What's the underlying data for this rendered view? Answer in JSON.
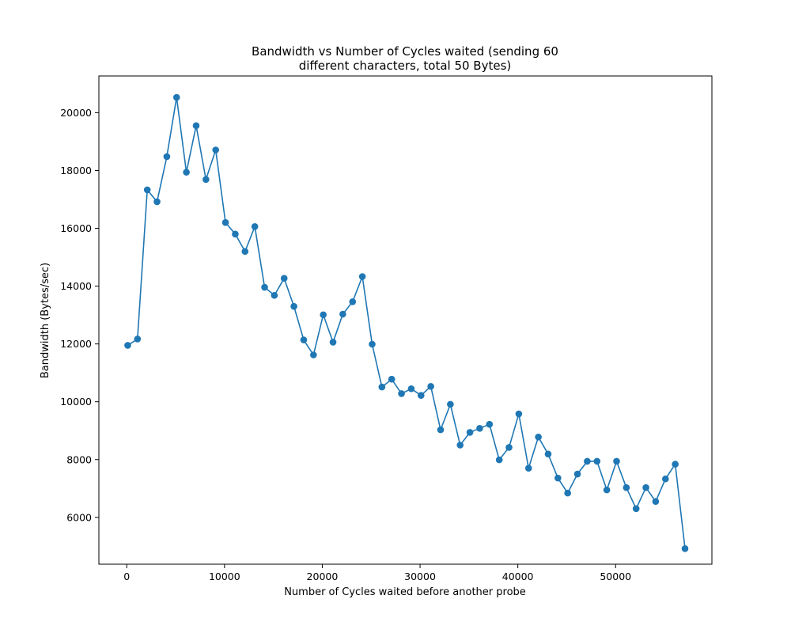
{
  "chart_data": {
    "type": "line",
    "title_line1": "Bandwidth vs Number of Cycles waited (sending 60",
    "title_line2": "different characters, total 50 Bytes)",
    "xlabel": "Number of Cycles waited before another probe",
    "ylabel": "Bandwidth (Bytes/sec)",
    "xlim": [
      -2850,
      59850
    ],
    "ylim": [
      4380,
      21270
    ],
    "xticks": [
      0,
      10000,
      20000,
      30000,
      40000,
      50000
    ],
    "xtick_labels": [
      "0",
      "10000",
      "20000",
      "30000",
      "40000",
      "50000"
    ],
    "yticks": [
      6000,
      8000,
      10000,
      12000,
      14000,
      16000,
      18000,
      20000
    ],
    "ytick_labels": [
      "6000",
      "8000",
      "10000",
      "12000",
      "14000",
      "16000",
      "18000",
      "20000"
    ],
    "grid": false,
    "legend": "none",
    "series": [
      {
        "color": "#1f77b4",
        "marker": "circle",
        "x": [
          100,
          1100,
          2100,
          3100,
          4100,
          5100,
          6100,
          7100,
          8100,
          9100,
          10100,
          11100,
          12100,
          13100,
          14100,
          15100,
          16100,
          17100,
          18100,
          19100,
          20100,
          21100,
          22100,
          23100,
          24100,
          25100,
          26100,
          27100,
          28100,
          29100,
          30100,
          31100,
          32100,
          33100,
          34100,
          35100,
          36100,
          37100,
          38100,
          39100,
          40100,
          41100,
          42100,
          43100,
          44100,
          45100,
          46100,
          47100,
          48100,
          49100,
          50100,
          51100,
          52100,
          53100,
          54100,
          55100,
          56100,
          57100
        ],
        "y": [
          11950,
          12170,
          17330,
          16920,
          18480,
          20530,
          17940,
          19550,
          17690,
          18710,
          16200,
          15800,
          15200,
          16060,
          13960,
          13680,
          14270,
          13300,
          12140,
          11620,
          13010,
          12060,
          13030,
          13460,
          14330,
          11990,
          10510,
          10780,
          10280,
          10450,
          10220,
          10530,
          9030,
          9910,
          8500,
          8940,
          9080,
          9220,
          7990,
          8420,
          9580,
          7700,
          8780,
          8190,
          7360,
          6840,
          7500,
          7940,
          7940,
          6950,
          7940,
          7030,
          6300,
          7030,
          6550,
          7330,
          7840,
          4920
        ]
      }
    ]
  }
}
